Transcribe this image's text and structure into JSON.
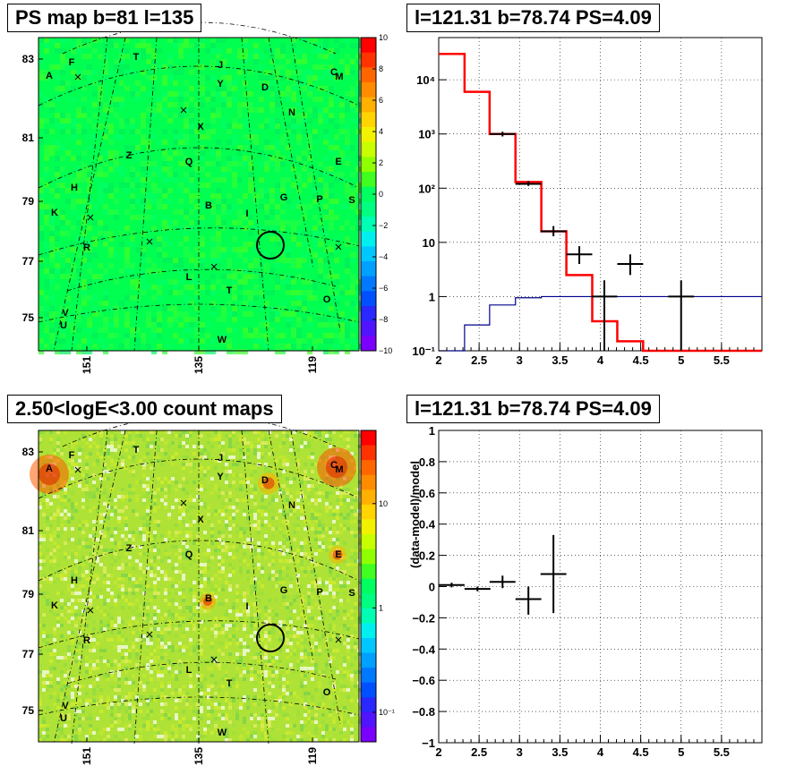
{
  "panels": {
    "map_ps": {
      "title": "PS map b=81 l=135",
      "colorbar": {
        "ticks": [
          "10",
          "8",
          "6",
          "4",
          "2",
          "0",
          "−2",
          "−4",
          "−6",
          "−8",
          "−10"
        ]
      }
    },
    "spectrum": {
      "title": "l=121.31 b=78.74 PS=4.09"
    },
    "map_counts": {
      "title": "2.50<logE<3.00 count maps",
      "colorbar": {
        "ticks": [
          "10",
          "1",
          "10⁻¹"
        ]
      }
    },
    "residual": {
      "title": "l=121.31 b=78.74 PS=4.09",
      "ylabel": "(data-model)/model"
    }
  },
  "map_axes": {
    "y_ticks": [
      "83",
      "81",
      "79",
      "77",
      "75"
    ],
    "x_ticks": [
      "151",
      "135",
      "119"
    ]
  },
  "sources": [
    "A",
    "F",
    "T",
    "J",
    "C",
    "M",
    "Y",
    "D",
    "N",
    "X",
    "Z",
    "Q",
    "E",
    "H",
    "B",
    "I",
    "G",
    "P",
    "S",
    "K",
    "R",
    "L",
    "T",
    "O",
    "V",
    "U",
    "W"
  ],
  "chart_data": [
    {
      "type": "line",
      "panel": "spectrum",
      "title": "l=121.31 b=78.74 PS=4.09",
      "xlabel": "",
      "ylabel": "",
      "xlim": [
        2,
        6
      ],
      "ylim": [
        0.1,
        60000
      ],
      "y_scale": "log",
      "x_ticks": [
        "2",
        "2.5",
        "3",
        "3.5",
        "4",
        "4.5",
        "5",
        "5.5"
      ],
      "y_ticks": [
        "10⁻¹",
        "1",
        "10",
        "10²",
        "10³",
        "10⁴"
      ],
      "grid": true,
      "series": [
        {
          "kind": "step",
          "color": "#ff0000",
          "bins": [
            2.0,
            2.32,
            2.63,
            2.95,
            3.27,
            3.58,
            3.9,
            4.21,
            4.53,
            4.85,
            5.17,
            5.48,
            5.8,
            6.0
          ],
          "values": [
            30000,
            6000,
            1000,
            130,
            16,
            2.5,
            0.35,
            0.15,
            0.1,
            0.1,
            0.1,
            0.1,
            0.1
          ]
        },
        {
          "kind": "step",
          "color": "#00008b",
          "bins": [
            2.0,
            2.32,
            2.63,
            2.95,
            3.27,
            3.58,
            3.9,
            4.21,
            4.53,
            4.85,
            5.17,
            5.48,
            5.8,
            6.0
          ],
          "values": [
            0.1,
            0.3,
            0.7,
            0.95,
            1.0,
            1.0,
            1.0,
            1.0,
            1.0,
            1.0,
            1.0,
            1.0,
            1.0
          ]
        },
        {
          "kind": "errorbar",
          "color": "#000000",
          "points": [
            {
              "x": 2.79,
              "xerr": 0.16,
              "y": 1000,
              "ylo": 900,
              "yhi": 1100
            },
            {
              "x": 3.11,
              "xerr": 0.16,
              "y": 120,
              "ylo": 110,
              "yhi": 135
            },
            {
              "x": 3.42,
              "xerr": 0.16,
              "y": 16,
              "ylo": 13,
              "yhi": 20
            },
            {
              "x": 3.74,
              "xerr": 0.16,
              "y": 6,
              "ylo": 4,
              "yhi": 8.5
            },
            {
              "x": 4.05,
              "xerr": 0.16,
              "y": 1,
              "ylo": 0.1,
              "yhi": 2
            },
            {
              "x": 4.37,
              "xerr": 0.16,
              "y": 4,
              "ylo": 2.5,
              "yhi": 6
            },
            {
              "x": 5.0,
              "xerr": 0.16,
              "y": 1,
              "ylo": 0.1,
              "yhi": 2
            }
          ]
        }
      ]
    },
    {
      "type": "scatter",
      "panel": "residual",
      "title": "l=121.31 b=78.74 PS=4.09",
      "xlabel": "",
      "ylabel": "(data-model)/model",
      "xlim": [
        2,
        6
      ],
      "ylim": [
        -1,
        1
      ],
      "x_ticks": [
        "2",
        "2.5",
        "3",
        "3.5",
        "4",
        "4.5",
        "5",
        "5.5"
      ],
      "y_ticks": [
        "1",
        "0.8",
        "0.6",
        "0.4",
        "0.2",
        "0",
        "−0.2",
        "−0.4",
        "−0.6",
        "−0.8",
        "−1"
      ],
      "grid": true,
      "series": [
        {
          "kind": "errorbar",
          "color": "#000000",
          "points": [
            {
              "x": 2.16,
              "xerr": 0.16,
              "y": 0.01,
              "ylo": -0.005,
              "yhi": 0.025
            },
            {
              "x": 2.48,
              "xerr": 0.16,
              "y": -0.015,
              "ylo": -0.03,
              "yhi": 0.0
            },
            {
              "x": 2.79,
              "xerr": 0.16,
              "y": 0.03,
              "ylo": -0.01,
              "yhi": 0.07
            },
            {
              "x": 3.11,
              "xerr": 0.16,
              "y": -0.08,
              "ylo": -0.18,
              "yhi": 0.0
            },
            {
              "x": 3.42,
              "xerr": 0.16,
              "y": 0.08,
              "ylo": -0.17,
              "yhi": 0.33
            }
          ]
        }
      ]
    }
  ]
}
